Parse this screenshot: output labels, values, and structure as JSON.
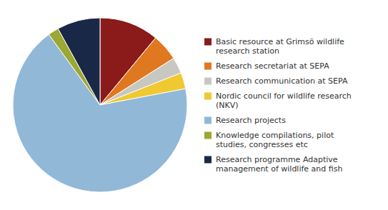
{
  "chart_data": {
    "type": "pie",
    "categories": [
      "Basic resource at Grimsö wildlife\nresearch station",
      "Research secretariat at SEPA",
      "Research communication at SEPA",
      "Nordic council for wildlife research\n(NKV)",
      "Research projects",
      "Knowledge compilations, pilot\nstudies, congresses etc",
      "Research programme Adaptive\nmanagement of wildlife and fish"
    ],
    "values": [
      11,
      5,
      3,
      3,
      68,
      2,
      8
    ],
    "colors": [
      "#8B1A1A",
      "#E07820",
      "#C8C8C0",
      "#F0C830",
      "#92B8D8",
      "#9BA832",
      "#1A2848"
    ],
    "legend": "right"
  }
}
